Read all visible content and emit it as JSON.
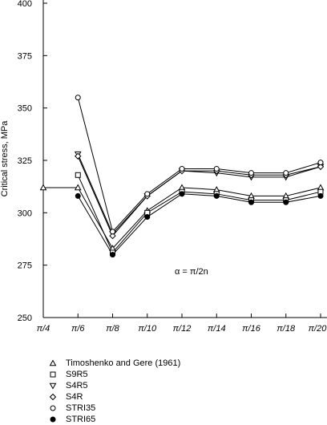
{
  "chart_data": {
    "type": "line",
    "title": "",
    "xlabel": "",
    "ylabel": "Critical stress, MPa",
    "ylim": [
      250,
      400
    ],
    "yticks": [
      "250",
      "275",
      "300",
      "325",
      "350",
      "375",
      "400"
    ],
    "categories": [
      "π/4",
      "π/6",
      "π/8",
      "π/10",
      "π/12",
      "π/14",
      "π/16",
      "π/18",
      "π/20"
    ],
    "annotation": "α = π/2n",
    "grid": false,
    "legend_position": "below plot",
    "series": [
      {
        "name": "Timoshenko and Gere (1961)",
        "marker": "triangle-up",
        "values": [
          312,
          312,
          283,
          301,
          312,
          311,
          308,
          308,
          312
        ]
      },
      {
        "name": "S9R5",
        "marker": "square",
        "values": [
          null,
          318,
          281,
          300,
          310,
          309,
          306,
          306,
          310
        ]
      },
      {
        "name": "S4R5",
        "marker": "triangle-down",
        "values": [
          null,
          328,
          290,
          308,
          320,
          319,
          317,
          317,
          322
        ]
      },
      {
        "name": "S4R",
        "marker": "diamond",
        "values": [
          null,
          327,
          289,
          308,
          320,
          320,
          318,
          318,
          322
        ]
      },
      {
        "name": "STRI35",
        "marker": "circle-open",
        "values": [
          null,
          355,
          291,
          309,
          321,
          321,
          319,
          319,
          324
        ]
      },
      {
        "name": "STRI65",
        "marker": "circle-filled",
        "values": [
          null,
          308,
          280,
          298,
          309,
          308,
          305,
          305,
          308
        ]
      }
    ]
  }
}
